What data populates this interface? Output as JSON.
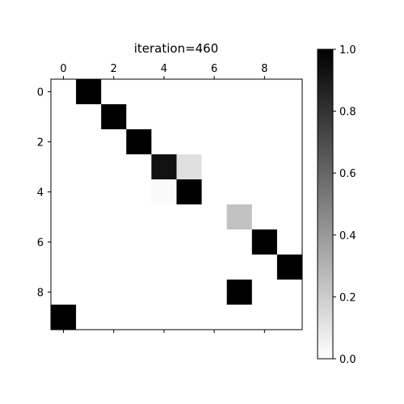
{
  "chart_data": {
    "type": "heatmap",
    "title": "iteration=460",
    "colormap": "gray_r",
    "rows": 10,
    "cols": 10,
    "x_ticks": [
      0,
      2,
      4,
      6,
      8
    ],
    "y_ticks": [
      0,
      2,
      4,
      6,
      8
    ],
    "x_tick_position": "top",
    "vmin": 0.0,
    "vmax": 1.0,
    "colorbar": {
      "placement": "right",
      "ticks": [
        "0.0",
        "0.2",
        "0.4",
        "0.6",
        "0.8",
        "1.0"
      ]
    },
    "matrix": [
      [
        0,
        1,
        0,
        0,
        0,
        0,
        0,
        0,
        0,
        0
      ],
      [
        0,
        0,
        1,
        0,
        0,
        0,
        0,
        0,
        0,
        0
      ],
      [
        0,
        0,
        0,
        1,
        0,
        0,
        0,
        0,
        0,
        0
      ],
      [
        0,
        0,
        0,
        0,
        0.93,
        0.12,
        0,
        0,
        0,
        0
      ],
      [
        0,
        0,
        0,
        0,
        0.02,
        1,
        0,
        0,
        0,
        0
      ],
      [
        0,
        0,
        0,
        0,
        0,
        0,
        0,
        0.24,
        0,
        0
      ],
      [
        0,
        0,
        0,
        0,
        0,
        0,
        0,
        0,
        1,
        0
      ],
      [
        0,
        0,
        0,
        0,
        0,
        0,
        0,
        0,
        0,
        1
      ],
      [
        0,
        0,
        0,
        0,
        0,
        0,
        0,
        1,
        0,
        0
      ],
      [
        1,
        0,
        0,
        0,
        0,
        0,
        0,
        0,
        0,
        0
      ]
    ]
  }
}
